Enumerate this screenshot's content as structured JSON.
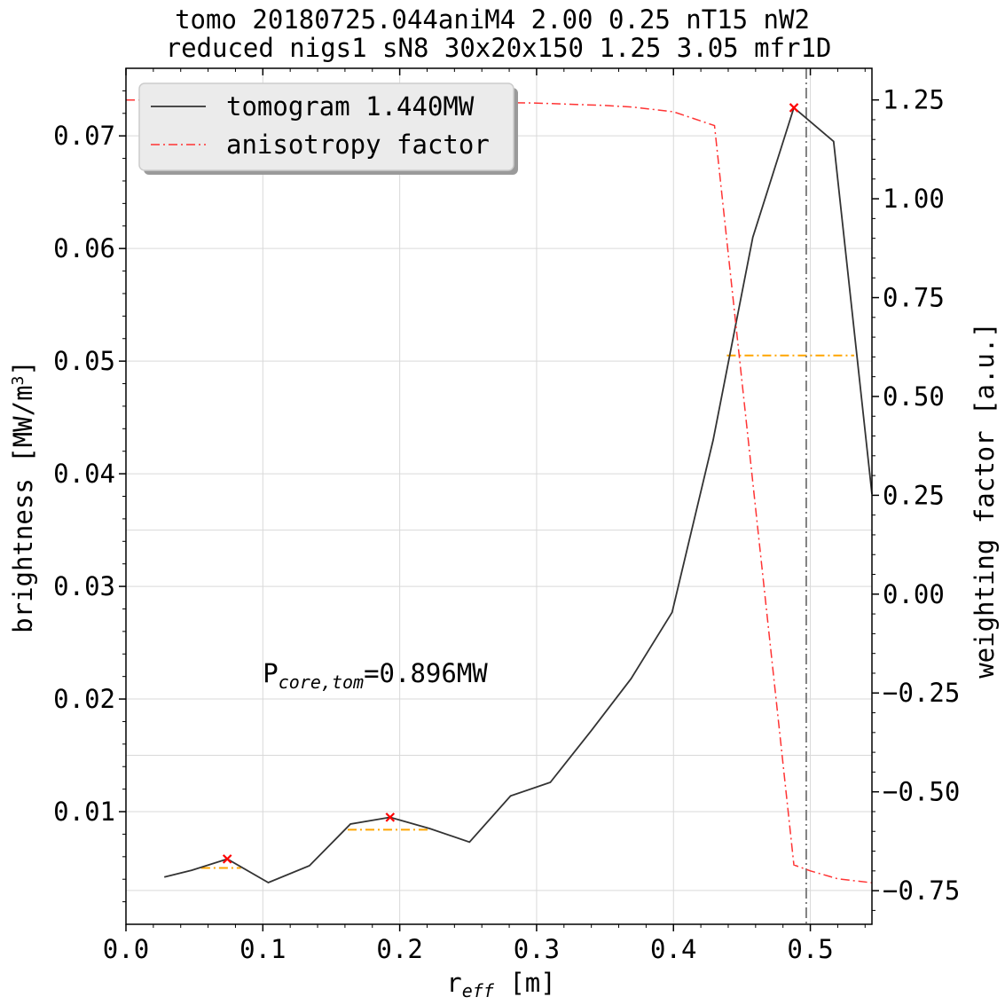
{
  "chart_data": {
    "type": "line",
    "title_line1": "tomo 20180725.044aniM4 2.00 0.25 nT15 nW2",
    "title_line2": "reduced nigs1 sN8 30x20x150 1.25 3.05 mfr1D",
    "xlabel_main": "r",
    "xlabel_sub": "eff",
    "xlabel_unit": " [m]",
    "ylabel_left_main": "brightness [MW/m",
    "ylabel_left_sup": "3",
    "ylabel_left_end": "]",
    "ylabel_right": "weighting factor [a.u.]",
    "xlim": [
      0.0,
      0.545
    ],
    "ylim_left": [
      0.0,
      0.076
    ],
    "ylim_right": [
      -0.835,
      1.33
    ],
    "x_ticks": [
      0.0,
      0.1,
      0.2,
      0.3,
      0.4,
      0.5
    ],
    "x_tick_labels": [
      "0.0",
      "0.1",
      "0.2",
      "0.3",
      "0.4",
      "0.5"
    ],
    "y_left_ticks": [
      0.01,
      0.02,
      0.03,
      0.04,
      0.05,
      0.06,
      0.07
    ],
    "y_left_tick_labels": [
      "0.01",
      "0.02",
      "0.03",
      "0.04",
      "0.05",
      "0.06",
      "0.07"
    ],
    "y_left_grid": [
      0.003,
      0.01,
      0.015,
      0.02,
      0.03,
      0.035,
      0.04,
      0.05,
      0.06,
      0.07
    ],
    "y_right_ticks": [
      -0.75,
      -0.5,
      -0.25,
      0.0,
      0.25,
      0.5,
      0.75,
      1.0,
      1.25
    ],
    "y_right_tick_labels": [
      "−0.75",
      "−0.50",
      "−0.25",
      "0.00",
      "0.25",
      "0.50",
      "0.75",
      "1.00",
      "1.25"
    ],
    "grid": true,
    "legend_position": "top-left",
    "annotation_main": "P",
    "annotation_sub": "core,tom",
    "annotation_value": "=0.896MW",
    "annotation_x": 0.1,
    "annotation_y": 0.0215,
    "vline_x": 0.497,
    "series": [
      {
        "name": "tomogram 1.440MW",
        "axis": "left",
        "color": "#333333",
        "style": "solid",
        "x": [
          0.028,
          0.048,
          0.074,
          0.104,
          0.134,
          0.164,
          0.193,
          0.222,
          0.251,
          0.281,
          0.31,
          0.34,
          0.369,
          0.399,
          0.429,
          0.458,
          0.488,
          0.517,
          0.545
        ],
        "y": [
          0.0042,
          0.0048,
          0.0058,
          0.0037,
          0.0052,
          0.0089,
          0.0095,
          0.0085,
          0.0073,
          0.0114,
          0.0126,
          0.0172,
          0.0218,
          0.0277,
          0.043,
          0.061,
          0.0725,
          0.0695,
          0.0382
        ]
      },
      {
        "name": "anisotropy factor",
        "axis": "right",
        "color": "#ff3333",
        "style": "dashdot",
        "x": [
          0.0,
          0.05,
          0.1,
          0.15,
          0.2,
          0.25,
          0.3,
          0.35,
          0.37,
          0.4,
          0.43,
          0.488,
          0.5,
          0.52,
          0.545
        ],
        "y": [
          1.25,
          1.25,
          1.249,
          1.248,
          1.247,
          1.245,
          1.242,
          1.236,
          1.232,
          1.22,
          1.185,
          -0.685,
          -0.7,
          -0.72,
          -0.73
        ]
      }
    ],
    "peak_markers": [
      {
        "x": 0.074,
        "y": 0.0058
      },
      {
        "x": 0.193,
        "y": 0.0095
      },
      {
        "x": 0.488,
        "y": 0.0725
      }
    ],
    "width_markers": [
      {
        "x1": 0.055,
        "x2": 0.084,
        "y": 0.005
      },
      {
        "x1": 0.162,
        "x2": 0.222,
        "y": 0.0084
      },
      {
        "x1": 0.439,
        "x2": 0.532,
        "y": 0.0505
      }
    ],
    "marker_color": "#ff0000",
    "width_color": "#ffa500",
    "vline_color": "#808080"
  }
}
